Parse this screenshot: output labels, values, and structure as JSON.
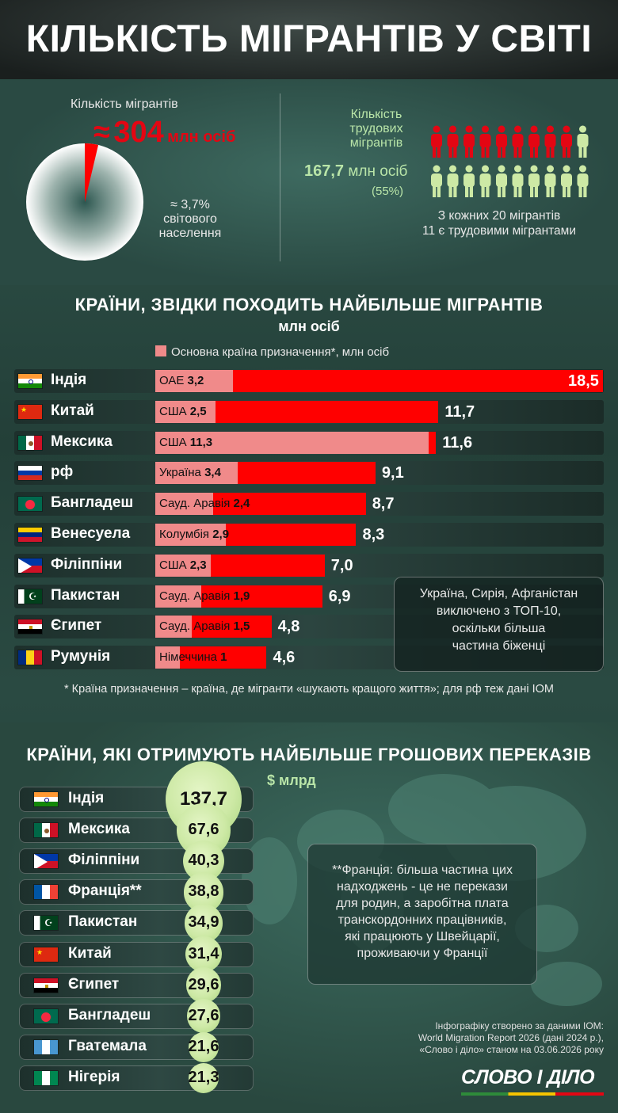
{
  "title": "КІЛЬКІСТЬ МІГРАНТІВ У СВІТІ",
  "total": {
    "label": "Кількість мігрантів",
    "approx": "≈",
    "value": "304",
    "unit": "млн осіб",
    "pct_line1": "≈ 3,7%",
    "pct_line2": "світового",
    "pct_line3": "населення",
    "share": 0.037
  },
  "labor": {
    "label_line1": "Кількість",
    "label_line2": "трудових",
    "label_line3": "мігрантів",
    "value": "167,7",
    "unit": "млн осіб",
    "pct": "(55%)",
    "note_line1": "З кожних 20 мігрантів",
    "note_line2": "11 є трудовими мігрантами",
    "labor_count": 11,
    "total_count": 20
  },
  "colors": {
    "red": "#ff0000",
    "pink": "#f08a8a",
    "light_green": "#b9e5a8",
    "person_red": "#e30613",
    "person_green": "#cde9a5"
  },
  "origin_section": {
    "title": "КРАЇНИ, ЗВІДКИ ПОХОДИТЬ НАЙБІЛЬШЕ МІГРАНТІВ",
    "subtitle": "млн осіб",
    "legend": "Основна країна призначення*, млн осіб",
    "note_line1": "Україна, Сирія, Афганістан",
    "note_line2": "виключено з ТОП-10,",
    "note_line3": "оскільки більша",
    "note_line4": "частина біженці",
    "footnote": "* Країна призначення – країна, де мігранти «шукають кращого життя»; для рф теж дані IOM"
  },
  "remit_section": {
    "title": "КРАЇНИ, ЯКІ ОТРИМУЮТЬ НАЙБІЛЬШЕ ГРОШОВИХ ПЕРЕКАЗІВ",
    "unit": "$ млрд",
    "note_line1": "**Франція: більша частина цих",
    "note_line2": "надходжень - це не перекази",
    "note_line3": "для родин, а заробітна плата",
    "note_line4": "транскордонних працівників,",
    "note_line5": "які працюють у Швейцарії,",
    "note_line6": "проживаючи у Франції",
    "credits_line1": "Інфографіку створено за даними IOM:",
    "credits_line2": "World Migration Report 2026 (дані 2024 р.),",
    "credits_line3": "«Слово і діло» станом на 03.06.2026 року",
    "logo": "СЛОВО І ДІЛО"
  },
  "chart_data": [
    {
      "type": "bar",
      "title": "КРАЇНИ, ЗВІДКИ ПОХОДИТЬ НАЙБІЛЬШЕ МІГРАНТІВ",
      "subtitle": "млн осіб",
      "categories": [
        "Індія",
        "Китай",
        "Мексика",
        "рф",
        "Бангладеш",
        "Венесуела",
        "Філіппіни",
        "Пакистан",
        "Єгипет",
        "Румунія"
      ],
      "flags": [
        "india",
        "china",
        "mexico",
        "russia",
        "bangladesh",
        "venezuela",
        "philippines",
        "pakistan",
        "egypt",
        "romania"
      ],
      "values": [
        18.5,
        11.7,
        11.6,
        9.1,
        8.7,
        8.3,
        7.0,
        6.9,
        4.8,
        4.6
      ],
      "value_labels": [
        "18,5",
        "11,7",
        "11,6",
        "9,1",
        "8,7",
        "8,3",
        "7,0",
        "6,9",
        "4,8",
        "4,6"
      ],
      "dest_names": [
        "ОАЕ",
        "США",
        "США",
        "Україна",
        "Сауд. Аравія",
        "Колумбія",
        "США",
        "Сауд. Аравія",
        "Сауд. Аравія",
        "Німеччина"
      ],
      "dest_values": [
        3.2,
        2.5,
        11.3,
        3.4,
        2.4,
        2.9,
        2.3,
        1.9,
        1.5,
        1
      ],
      "dest_labels": [
        "3,2",
        "2,5",
        "11,3",
        "3,4",
        "2,4",
        "2,9",
        "2,3",
        "1,9",
        "1,5",
        "1"
      ]
    },
    {
      "type": "bubble",
      "title": "КРАЇНИ, ЯКІ ОТРИМУЮТЬ НАЙБІЛЬШЕ ГРОШОВИХ ПЕРЕКАЗІВ",
      "unit": "$ млрд",
      "categories": [
        "Індія",
        "Мексика",
        "Філіппіни",
        "Франція**",
        "Пакистан",
        "Китай",
        "Єгипет",
        "Бангладеш",
        "Гватемала",
        "Нігерія"
      ],
      "flags": [
        "india",
        "mexico",
        "philippines",
        "france",
        "pakistan",
        "china",
        "egypt",
        "bangladesh",
        "guatemala",
        "nigeria"
      ],
      "values": [
        137.7,
        67.6,
        40.3,
        38.8,
        34.9,
        31.4,
        29.6,
        27.6,
        21.6,
        21.3
      ],
      "value_labels": [
        "137,7",
        "67,6",
        "40,3",
        "38,8",
        "34,9",
        "31,4",
        "29,6",
        "27,6",
        "21,6",
        "21,3"
      ]
    }
  ]
}
